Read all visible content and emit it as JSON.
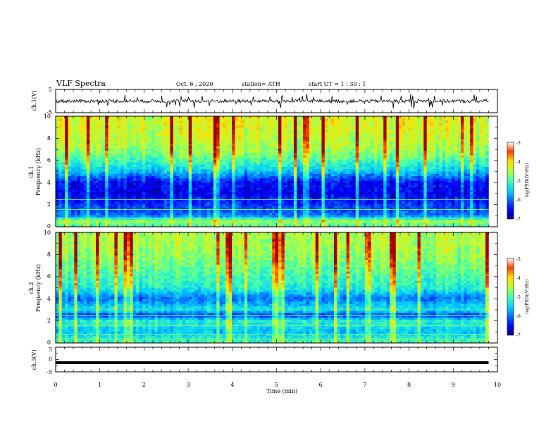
{
  "header": {
    "title": "VLF Spectra",
    "date": "Oct. 6 , 2020",
    "station": "station= ATH",
    "start": "start UT = 1 : 30 : 1"
  },
  "colors": {
    "spectrogram_cmap": [
      "#00007f",
      "#0000ff",
      "#00a0ff",
      "#00ffff",
      "#7fff7f",
      "#ffff00",
      "#ff9000",
      "#ff0000",
      "#7f0000"
    ],
    "trace": "#000000",
    "axis": "#000000"
  },
  "chart_data": [
    {
      "type": "line",
      "panel": "ch1-waveform",
      "ylabel": "ch.1(V)",
      "ylim": [
        -5,
        5
      ],
      "yticks": [
        "5",
        "-5"
      ],
      "xlim": [
        0,
        10
      ],
      "description_values": {
        "mean": 0,
        "approx_range": [
          -1.8,
          1.8
        ]
      }
    },
    {
      "type": "heatmap",
      "panel": "ch1-spectrogram",
      "ylabel": "ch.1 Frequency (kHz)",
      "ylabel_line1": "ch.1",
      "ylabel_line2": "Frequency (kHz)",
      "ylim": [
        0,
        10
      ],
      "yticks": [
        "0",
        "2",
        "4",
        "6",
        "8",
        "10"
      ],
      "xlim": [
        0,
        10
      ],
      "colorbar": {
        "label": "log(PSD)(V²/Hz)",
        "range": [
          -7,
          -3
        ],
        "ticks": [
          "-3",
          "-4",
          "-5",
          "-6",
          "-7"
        ]
      },
      "intensity_profile_by_freq_khz": [
        [
          0,
          -5.0
        ],
        [
          0.5,
          -4.6
        ],
        [
          1,
          -6.0
        ],
        [
          2,
          -6.3
        ],
        [
          3,
          -6.6
        ],
        [
          4,
          -6.5
        ],
        [
          5,
          -5.6
        ],
        [
          6,
          -5.0
        ],
        [
          7,
          -4.6
        ],
        [
          8,
          -4.4
        ],
        [
          9,
          -4.3
        ],
        [
          10,
          -4.3
        ]
      ]
    },
    {
      "type": "heatmap",
      "panel": "ch2-spectrogram",
      "ylabel": "ch.2 Frequency (kHz)",
      "ylabel_line1": "ch.2",
      "ylabel_line2": "Frequency (kHz)",
      "ylim": [
        0,
        10
      ],
      "yticks": [
        "0",
        "2",
        "4",
        "6",
        "8",
        "10"
      ],
      "xlim": [
        0,
        10
      ],
      "colorbar": {
        "label": "log(PSD)(V²/Hz)",
        "range": [
          -7,
          -3
        ],
        "ticks": [
          "-3",
          "-4",
          "-5",
          "-6",
          "-7"
        ]
      },
      "intensity_profile_by_freq_khz": [
        [
          0,
          -5.0
        ],
        [
          1,
          -5.6
        ],
        [
          2,
          -5.2
        ],
        [
          2.5,
          -6.3
        ],
        [
          3,
          -5.3
        ],
        [
          4,
          -6.0
        ],
        [
          5,
          -5.2
        ],
        [
          6,
          -5.0
        ],
        [
          7,
          -4.8
        ],
        [
          8,
          -4.6
        ],
        [
          9,
          -4.5
        ],
        [
          10,
          -4.5
        ]
      ]
    },
    {
      "type": "line",
      "panel": "ch3-waveform",
      "ylabel": "ch.3(V)",
      "ylim": [
        -5,
        5
      ],
      "yticks": [
        "5",
        "0",
        "-5"
      ],
      "xlim": [
        0,
        10
      ],
      "xlabel": "Time (min)",
      "xticks": [
        "0",
        "1",
        "2",
        "3",
        "4",
        "5",
        "6",
        "7",
        "8",
        "9",
        "10"
      ],
      "values_constant": -1.3,
      "data_end_min": 9.8
    }
  ]
}
